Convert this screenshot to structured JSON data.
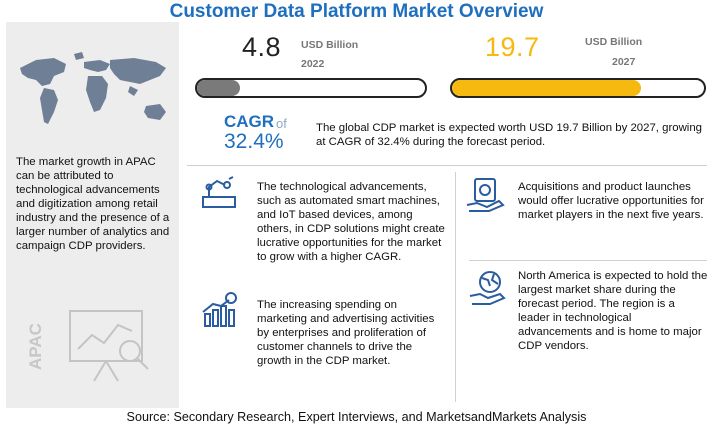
{
  "title": "Customer Data Platform Market Overview",
  "left_panel": {
    "region_label": "APAC",
    "note": "The market growth in APAC can be attributed to technological advancements and digitization among retail industry and the presence of a larger number of analytics and campaign CDP providers."
  },
  "chart_data": {
    "type": "bar",
    "categories": [
      "2022",
      "2027"
    ],
    "values": [
      4.8,
      19.7
    ],
    "unit": "USD Billion",
    "value_labels": [
      "4.8",
      "19.7"
    ],
    "bar_fill_fraction": [
      0.19,
      0.75
    ],
    "colors": [
      "#7a7a7a",
      "#f5b90f"
    ],
    "cagr": {
      "label": "CAGR",
      "connector": "of",
      "value": "32.4%"
    }
  },
  "summary": "The global CDP market is expected worth USD 19.7 Billion by 2027, growing at CAGR of 32.4% during the forecast period.",
  "facts": [
    {
      "icon": "automation-icon",
      "text": "The technological advancements, such as automated smart machines, and IoT based devices, among others, in CDP solutions might create lucrative opportunities for the market to grow with a higher CAGR."
    },
    {
      "icon": "money-hand-icon",
      "text": "Acquisitions and product launches would offer lucrative opportunities for market players in the next five years."
    },
    {
      "icon": "spending-chart-icon",
      "text": "The increasing spending on marketing and advertising activities by enterprises and proliferation of customer channels to drive the growth in the CDP market."
    },
    {
      "icon": "globe-hand-icon",
      "text": "North America is expected to hold the largest market share during the forecast period. The region is a leader in technological advancements and is home to major CDP vendors."
    }
  ],
  "source": "Source: Secondary Research, Expert Interviews, and MarketsandMarkets Analysis",
  "colors": {
    "title": "#1f6fbf",
    "accent": "#f5b90f",
    "panel": "#ededed"
  }
}
